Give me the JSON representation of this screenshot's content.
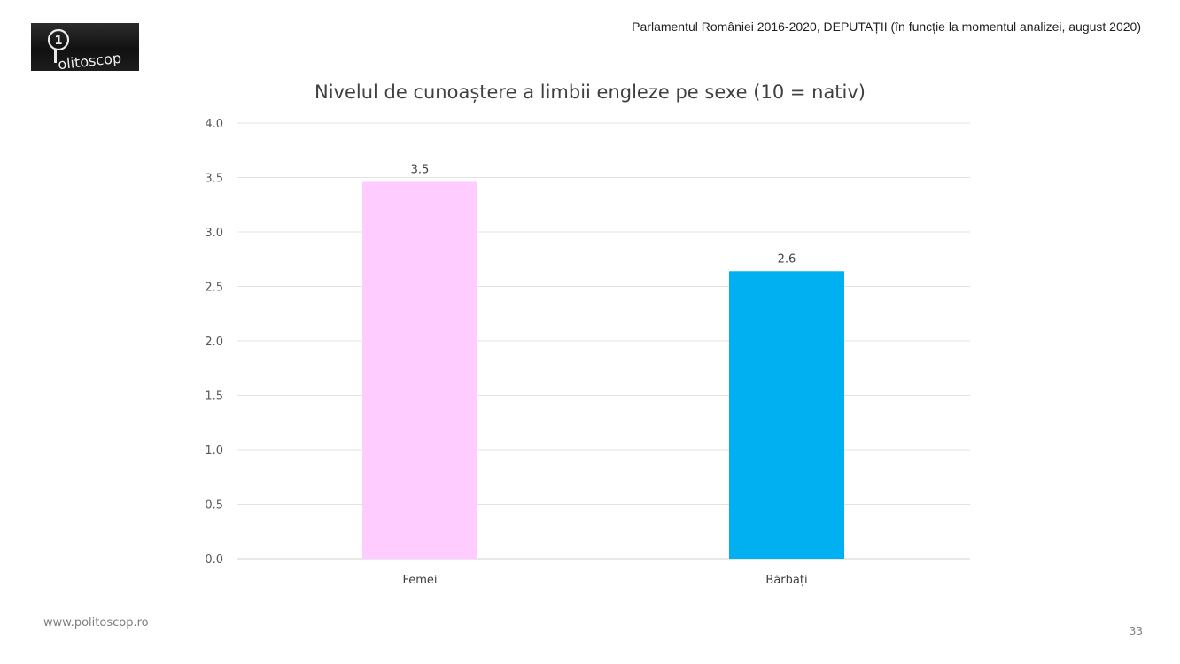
{
  "logo": {
    "text": "olitoscop"
  },
  "header": {
    "caption": "Parlamentul României 2016-2020, DEPUTAȚII (în funcție la momentul analizei, august 2020)"
  },
  "footer": {
    "url": "www.politoscop.ro",
    "page_number": "33"
  },
  "chart_data": {
    "type": "bar",
    "title": "Nivelul de cunoaștere a limbii engleze pe sexe (10 = nativ)",
    "categories": [
      "Femei",
      "Bărbați"
    ],
    "values": [
      3.46,
      2.64
    ],
    "data_labels": [
      "3.5",
      "2.6"
    ],
    "colors": [
      "#ffccff",
      "#00b0f0"
    ],
    "ylim": [
      0,
      4
    ],
    "yticks": [
      "0.0",
      "0.5",
      "1.0",
      "1.5",
      "2.0",
      "2.5",
      "3.0",
      "3.5",
      "4.0"
    ],
    "grid": true,
    "legend": "none",
    "xlabel": "",
    "ylabel": ""
  }
}
